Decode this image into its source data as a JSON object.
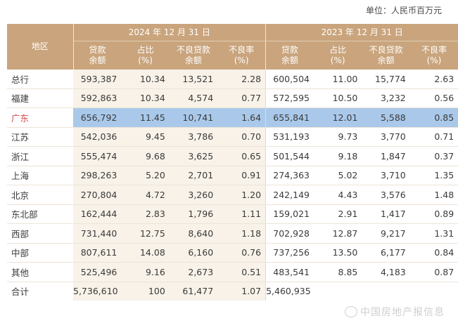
{
  "unit_label": "单位：人民币百万元",
  "header": {
    "region": "地区",
    "year_2024": "2024 年 12 月 31 日",
    "year_2023": "2023 年 12 月 31 日",
    "col1": "贷款\n余额",
    "col2": "占比\n(%)",
    "col3": "不良贷款\n余额",
    "col4": "不良率\n(%)"
  },
  "rows": [
    {
      "name": "总行",
      "a": "593,387",
      "b": "10.34",
      "c": "13,521",
      "d": "2.28",
      "e": "600,504",
      "f": "11.00",
      "g": "15,774",
      "h": "2.63"
    },
    {
      "name": "福建",
      "a": "592,863",
      "b": "10.34",
      "c": "4,574",
      "d": "0.77",
      "e": "572,595",
      "f": "10.50",
      "g": "3,232",
      "h": "0.56"
    },
    {
      "name": "广东",
      "a": "656,792",
      "b": "11.45",
      "c": "10,741",
      "d": "1.64",
      "e": "655,841",
      "f": "12.01",
      "g": "5,588",
      "h": "0.85"
    },
    {
      "name": "江苏",
      "a": "542,036",
      "b": "9.45",
      "c": "3,786",
      "d": "0.70",
      "e": "531,193",
      "f": "9.73",
      "g": "3,770",
      "h": "0.71"
    },
    {
      "name": "浙江",
      "a": "555,474",
      "b": "9.68",
      "c": "3,625",
      "d": "0.65",
      "e": "501,544",
      "f": "9.18",
      "g": "1,847",
      "h": "0.37"
    },
    {
      "name": "上海",
      "a": "298,263",
      "b": "5.20",
      "c": "2,701",
      "d": "0.91",
      "e": "274,363",
      "f": "5.02",
      "g": "3,710",
      "h": "1.35"
    },
    {
      "name": "北京",
      "a": "270,804",
      "b": "4.72",
      "c": "3,260",
      "d": "1.20",
      "e": "242,149",
      "f": "4.43",
      "g": "3,576",
      "h": "1.48"
    },
    {
      "name": "东北部",
      "a": "162,444",
      "b": "2.83",
      "c": "1,796",
      "d": "1.11",
      "e": "159,021",
      "f": "2.91",
      "g": "1,417",
      "h": "0.89"
    },
    {
      "name": "西部",
      "a": "731,440",
      "b": "12.75",
      "c": "8,640",
      "d": "1.18",
      "e": "702,928",
      "f": "12.87",
      "g": "9,217",
      "h": "1.31"
    },
    {
      "name": "中部",
      "a": "807,611",
      "b": "14.08",
      "c": "6,160",
      "d": "0.76",
      "e": "737,256",
      "f": "13.50",
      "g": "6,177",
      "h": "0.84"
    },
    {
      "name": "其他",
      "a": "525,496",
      "b": "9.16",
      "c": "2,673",
      "d": "0.51",
      "e": "483,541",
      "f": "8.85",
      "g": "4,183",
      "h": "0.87"
    },
    {
      "name": "合计",
      "a": "5,736,610",
      "b": "100",
      "c": "61,477",
      "d": "1.07",
      "e": "5,460,935",
      "f": "",
      "g": "",
      "h": ""
    }
  ],
  "watermark": "中国房地产报信息",
  "highlight_color": "#aac9ea",
  "header_color": "#c9a47c"
}
